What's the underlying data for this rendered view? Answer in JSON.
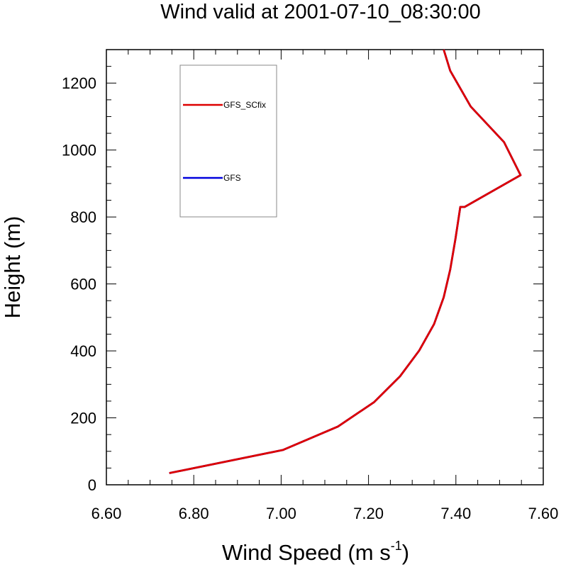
{
  "chart_data": {
    "type": "line",
    "title": "Wind valid at 2001-07-10_08:30:00",
    "xlabel": "Wind Speed (m s",
    "xlabel_sup": "-1",
    "xlabel_close": ")",
    "ylabel": "Height (m)",
    "xlim": [
      6.6,
      7.6
    ],
    "ylim": [
      0,
      1300
    ],
    "x_ticks": [
      6.6,
      6.8,
      7.0,
      7.2,
      7.4,
      7.6
    ],
    "x_tick_labels": [
      "6.60",
      "6.80",
      "7.00",
      "7.20",
      "7.40",
      "7.60"
    ],
    "y_ticks": [
      0,
      200,
      400,
      600,
      800,
      1000,
      1200
    ],
    "y_tick_labels": [
      "0",
      "200",
      "400",
      "600",
      "800",
      "1000",
      "1200"
    ],
    "grid": false,
    "legend_position": "top-left",
    "series": [
      {
        "name": "GFS",
        "color": "#0000dd",
        "x": [
          6.744,
          7.004,
          7.13,
          7.213,
          7.272,
          7.316,
          7.35,
          7.372,
          7.387,
          7.399,
          7.41,
          7.42,
          7.548,
          7.51,
          7.434,
          7.387,
          7.372
        ],
        "y": [
          35,
          104,
          174,
          247,
          324,
          401,
          480,
          560,
          643,
          735,
          830,
          830,
          925,
          1024,
          1130,
          1237,
          1300
        ]
      },
      {
        "name": "GFS_SCfix",
        "color": "#dd0000",
        "x": [
          6.744,
          7.004,
          7.13,
          7.213,
          7.272,
          7.316,
          7.35,
          7.372,
          7.387,
          7.399,
          7.41,
          7.42,
          7.548,
          7.51,
          7.434,
          7.387,
          7.372
        ],
        "y": [
          35,
          104,
          174,
          247,
          324,
          401,
          480,
          560,
          643,
          735,
          830,
          830,
          925,
          1024,
          1130,
          1237,
          1300
        ]
      }
    ],
    "legend": [
      {
        "name": "GFS_SCfix",
        "color": "#dd0000"
      },
      {
        "name": "GFS",
        "color": "#0000dd"
      }
    ]
  }
}
